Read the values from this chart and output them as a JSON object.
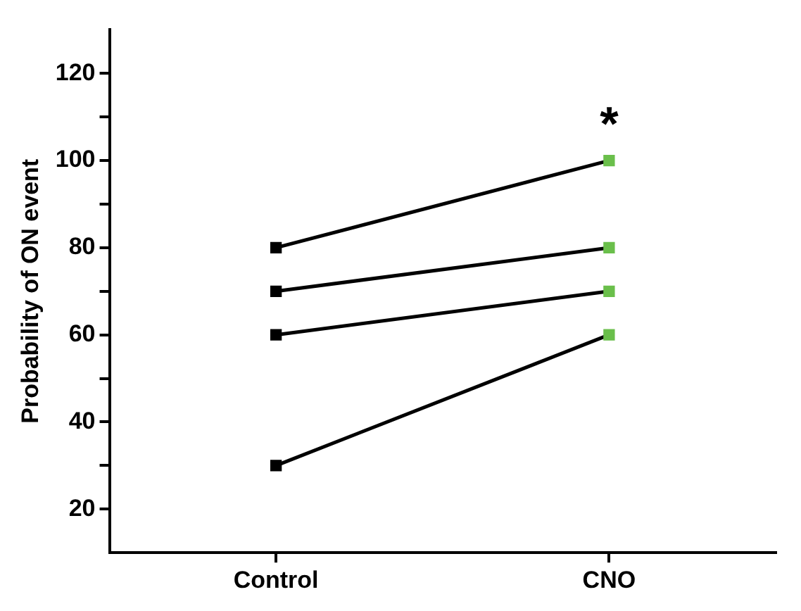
{
  "chart_data": {
    "type": "line",
    "ylabel": "Probability of ON event",
    "categories": [
      "Control",
      "CNO"
    ],
    "series": [
      {
        "color": "#000000",
        "colors": [
          "#000000",
          "#6abf4b"
        ],
        "values": [
          80,
          100
        ]
      },
      {
        "color": "#000000",
        "colors": [
          "#000000",
          "#6abf4b"
        ],
        "values": [
          70,
          80
        ]
      },
      {
        "color": "#000000",
        "colors": [
          "#000000",
          "#6abf4b"
        ],
        "values": [
          60,
          70
        ]
      },
      {
        "color": "#000000",
        "colors": [
          "#000000",
          "#6abf4b"
        ],
        "values": [
          30,
          60
        ]
      }
    ],
    "ylim": [
      10,
      130
    ],
    "yticks": [
      20,
      {
        "value": 30,
        "label": null
      },
      40,
      {
        "value": 50,
        "label": null
      },
      60,
      {
        "value": 70,
        "label": null
      },
      80,
      {
        "value": 90,
        "label": null
      },
      100,
      {
        "value": 110,
        "label": null
      },
      120
    ],
    "annotations": [
      "*"
    ],
    "marker": "square",
    "line_style": "solid",
    "grid": false,
    "legend": false
  }
}
